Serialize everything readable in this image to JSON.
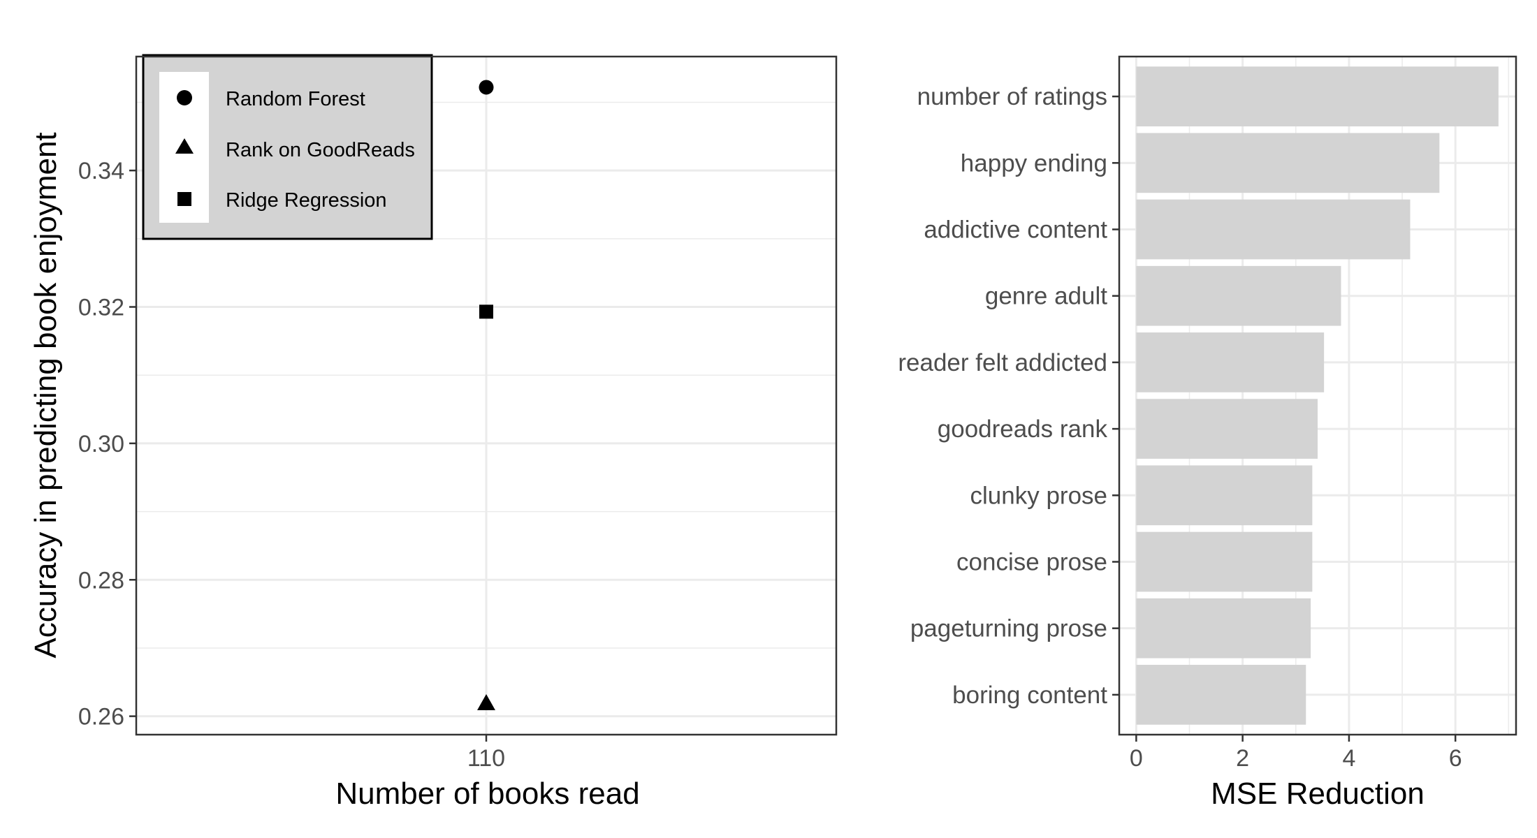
{
  "colors": {
    "background": "#ffffff",
    "grid": "#ebebeb",
    "panel_border": "#333333",
    "tick_text": "#4d4d4d",
    "marker": "#000000",
    "bar_fill": "#d3d3d3",
    "legend_fill": "#d3d3d3",
    "legend_key_fill": "#ffffff"
  },
  "chart_data": [
    {
      "type": "scatter",
      "xlabel": "Number of books read",
      "ylabel": "Accuracy in predicting book enjoyment",
      "x_categories": [
        "110"
      ],
      "ylim": [
        0.2573,
        0.3567
      ],
      "y_ticks": [
        0.26,
        0.28,
        0.3,
        0.32,
        0.34
      ],
      "y_tick_labels": [
        "0.26",
        "0.28",
        "0.30",
        "0.32",
        "0.34"
      ],
      "grid": true,
      "legend_position": "top-left",
      "series": [
        {
          "name": "Random Forest",
          "marker": "circle",
          "x": "110",
          "y": 0.3522
        },
        {
          "name": "Rank on GoodReads",
          "marker": "triangle",
          "x": "110",
          "y": 0.2618
        },
        {
          "name": "Ridge Regression",
          "marker": "square",
          "x": "110",
          "y": 0.3193
        }
      ]
    },
    {
      "type": "bar",
      "orientation": "horizontal",
      "xlabel": "MSE Reduction",
      "ylabel": "",
      "categories": [
        "number of ratings",
        "happy ending",
        "addictive content",
        "genre adult",
        "reader felt addicted",
        "goodreads rank",
        "clunky prose",
        "concise prose",
        "pageturning prose",
        "boring content"
      ],
      "values": [
        6.81,
        5.7,
        5.15,
        3.85,
        3.53,
        3.41,
        3.31,
        3.31,
        3.28,
        3.19
      ],
      "xlim": [
        -0.32,
        7.14
      ],
      "x_ticks": [
        0,
        2,
        4,
        6
      ],
      "x_tick_labels": [
        "0",
        "2",
        "4",
        "6"
      ],
      "grid": true
    }
  ]
}
